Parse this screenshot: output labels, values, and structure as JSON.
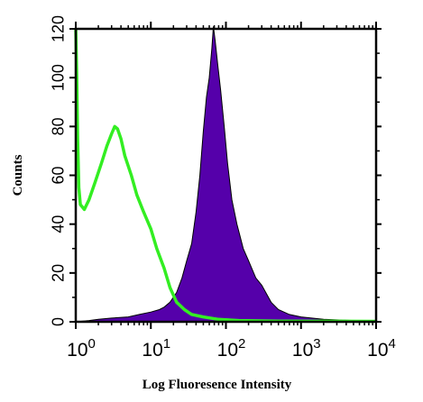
{
  "chart_data": {
    "type": "area",
    "title": "",
    "xlabel": "Log Fluoresence Intensity",
    "ylabel": "Counts",
    "x_scale": "log",
    "xlim": [
      1,
      10000
    ],
    "ylim": [
      0,
      120
    ],
    "grid": false,
    "legend": "none",
    "x_ticks": [
      {
        "base": "10",
        "exp": "0",
        "value": 1
      },
      {
        "base": "10",
        "exp": "1",
        "value": 10
      },
      {
        "base": "10",
        "exp": "2",
        "value": 100
      },
      {
        "base": "10",
        "exp": "3",
        "value": 1000
      },
      {
        "base": "10",
        "exp": "4",
        "value": 10000
      }
    ],
    "y_ticks": [
      "0",
      "20",
      "40",
      "60",
      "80",
      "100",
      "120"
    ],
    "series": [
      {
        "style": "filled",
        "color": "#5500aa",
        "points": [
          [
            1,
            0
          ],
          [
            1.5,
            0.5
          ],
          [
            2,
            1
          ],
          [
            3,
            1.5
          ],
          [
            5,
            2
          ],
          [
            7,
            3
          ],
          [
            10,
            4
          ],
          [
            13,
            5
          ],
          [
            15,
            6
          ],
          [
            18,
            8
          ],
          [
            22,
            12
          ],
          [
            26,
            18
          ],
          [
            30,
            25
          ],
          [
            35,
            32
          ],
          [
            40,
            45
          ],
          [
            45,
            60
          ],
          [
            50,
            78
          ],
          [
            55,
            92
          ],
          [
            60,
            100
          ],
          [
            65,
            112
          ],
          [
            68,
            121
          ],
          [
            72,
            115
          ],
          [
            78,
            105
          ],
          [
            85,
            95
          ],
          [
            95,
            80
          ],
          [
            105,
            65
          ],
          [
            120,
            50
          ],
          [
            140,
            40
          ],
          [
            170,
            30
          ],
          [
            200,
            25
          ],
          [
            250,
            18
          ],
          [
            300,
            15
          ],
          [
            400,
            8
          ],
          [
            500,
            5
          ],
          [
            700,
            3
          ],
          [
            1000,
            2
          ],
          [
            2000,
            1
          ],
          [
            5000,
            0.5
          ],
          [
            10000,
            0
          ]
        ]
      },
      {
        "style": "line",
        "color": "#33ee22",
        "points": [
          [
            1,
            120
          ],
          [
            1.03,
            100
          ],
          [
            1.06,
            75
          ],
          [
            1.1,
            55
          ],
          [
            1.15,
            48
          ],
          [
            1.3,
            46
          ],
          [
            1.5,
            50
          ],
          [
            1.8,
            57
          ],
          [
            2.2,
            65
          ],
          [
            2.6,
            72
          ],
          [
            3.0,
            77
          ],
          [
            3.3,
            80
          ],
          [
            3.6,
            79
          ],
          [
            4.0,
            75
          ],
          [
            4.5,
            68
          ],
          [
            5.5,
            60
          ],
          [
            6.5,
            52
          ],
          [
            8,
            45
          ],
          [
            10,
            38
          ],
          [
            12,
            30
          ],
          [
            15,
            22
          ],
          [
            18,
            14
          ],
          [
            22,
            8
          ],
          [
            28,
            5
          ],
          [
            35,
            3
          ],
          [
            50,
            2
          ],
          [
            80,
            1
          ],
          [
            150,
            0.5
          ],
          [
            500,
            0.3
          ],
          [
            10000,
            0.2
          ]
        ]
      }
    ]
  }
}
